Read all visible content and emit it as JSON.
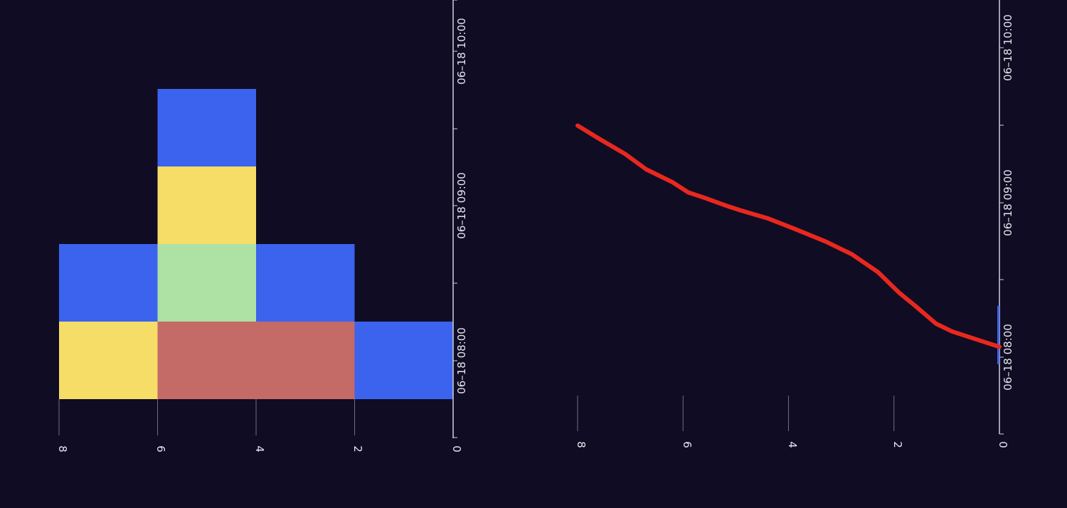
{
  "theme": {
    "background": "#0f0c24",
    "axis": "#cfcfd8",
    "grid": "#6f6f80",
    "tick_text": "#e6e6ee"
  },
  "chart_data": [
    {
      "type": "heatmap",
      "orientation": "rotated 90° clockwise",
      "title": "",
      "xlabel": "",
      "ylabel": "",
      "xlim": [
        0,
        8
      ],
      "x_ticks": [
        "0",
        "2",
        "4",
        "6",
        "8"
      ],
      "time_tick_labels": [
        "06–18 08:00",
        "06–18 09:00",
        "06–18 10:00"
      ],
      "rows": [
        {
          "label": "06–18 08:00",
          "cells": [
            {
              "from": 0,
              "to": 2,
              "color": "#3b63ee"
            },
            {
              "from": 2,
              "to": 6,
              "color": "#c46a67"
            },
            {
              "from": 6,
              "to": 8,
              "color": "#f5dd67"
            }
          ]
        },
        {
          "label": "",
          "cells": [
            {
              "from": 2,
              "to": 4,
              "color": "#3b63ee"
            },
            {
              "from": 4,
              "to": 6,
              "color": "#aee1a4"
            },
            {
              "from": 6,
              "to": 8,
              "color": "#3b63ee"
            }
          ]
        },
        {
          "label": "06–18 09:00",
          "cells": [
            {
              "from": 4,
              "to": 6,
              "color": "#f5dd67"
            }
          ]
        },
        {
          "label": "",
          "cells": [
            {
              "from": 4,
              "to": 6,
              "color": "#3b63ee"
            }
          ]
        }
      ]
    },
    {
      "type": "line",
      "orientation": "rotated 90° clockwise",
      "title": "",
      "xlabel": "",
      "ylabel": "",
      "ylim": [
        0,
        8
      ],
      "y_ticks": [
        "0",
        "2",
        "4",
        "6",
        "8"
      ],
      "time_tick_labels": [
        "06–18 08:00",
        "06–18 09:00",
        "06–18 10:00"
      ],
      "series": [
        {
          "color": "#e8281e",
          "points": [
            [
              "08:04",
              0.0
            ],
            [
              "08:06",
              0.3
            ],
            [
              "08:10",
              0.9
            ],
            [
              "08:13",
              1.2
            ],
            [
              "08:20",
              1.6
            ],
            [
              "08:25",
              1.9
            ],
            [
              "08:33",
              2.3
            ],
            [
              "08:40",
              2.8
            ],
            [
              "08:45",
              3.3
            ],
            [
              "08:50",
              3.9
            ],
            [
              "08:54",
              4.4
            ],
            [
              "08:57",
              4.9
            ],
            [
              "08:59",
              5.2
            ],
            [
              "09:02",
              5.6
            ],
            [
              "09:04",
              5.9
            ],
            [
              "09:08",
              6.2
            ],
            [
              "09:13",
              6.7
            ],
            [
              "09:19",
              7.1
            ],
            [
              "09:25",
              7.6
            ],
            [
              "09:30",
              8.0
            ]
          ]
        }
      ],
      "marker": {
        "color": "#3b63ee",
        "from": "08:00",
        "to": "08:20"
      }
    }
  ]
}
